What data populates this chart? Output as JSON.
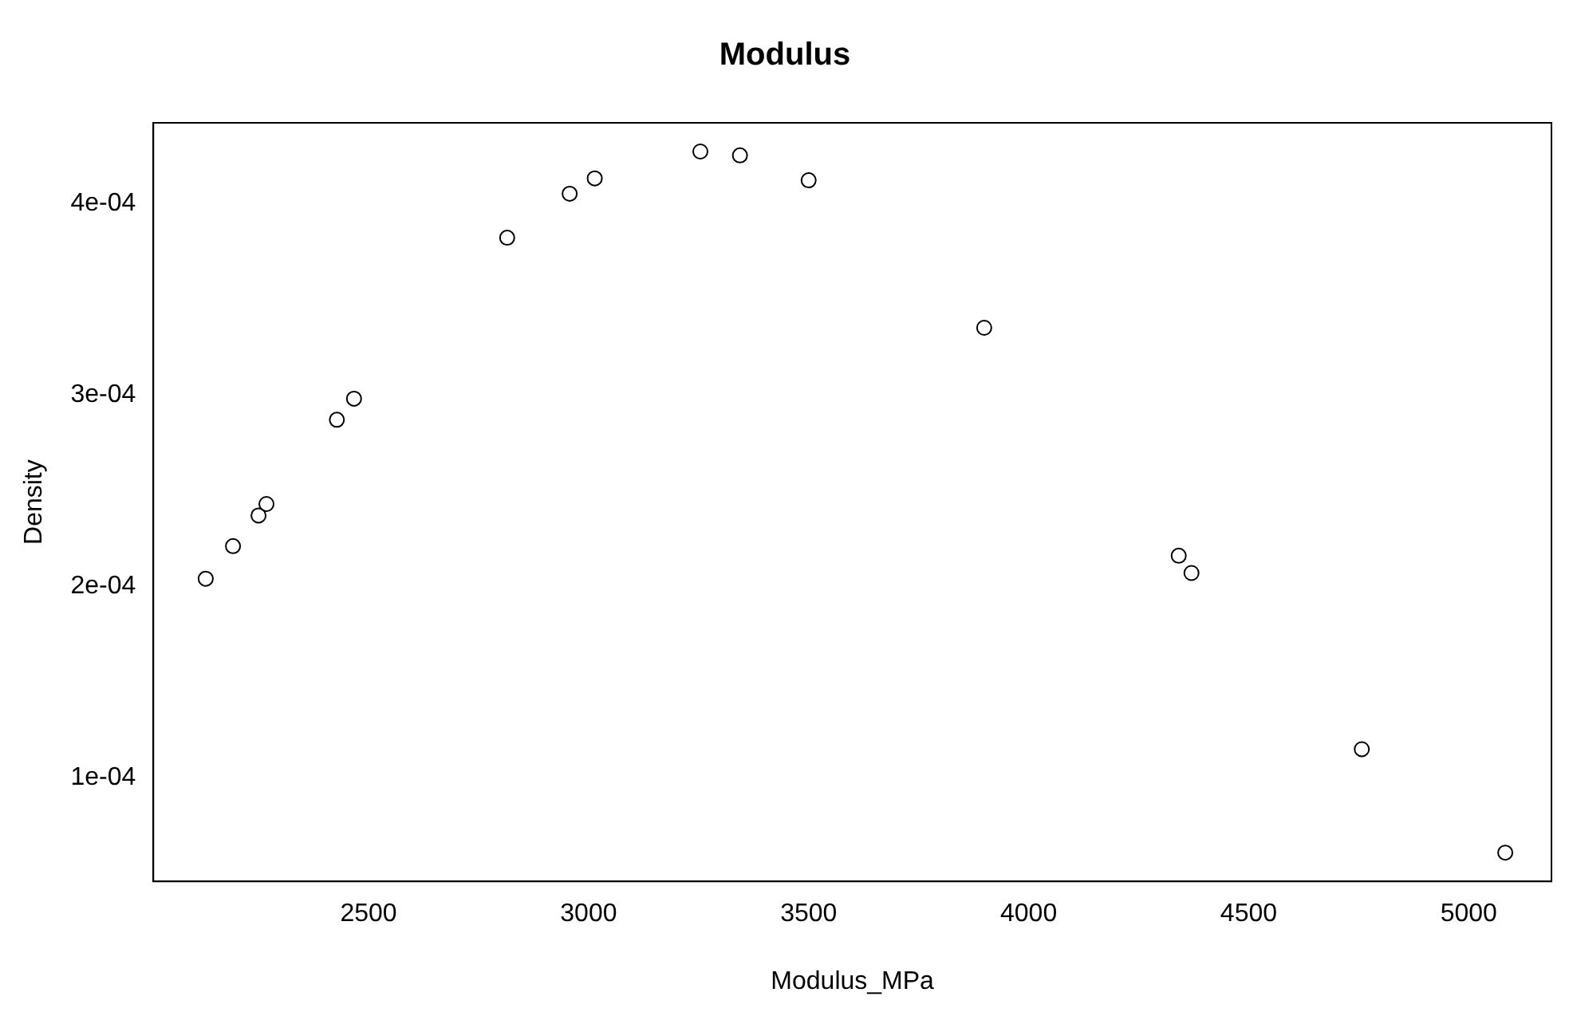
{
  "chart_data": {
    "type": "scatter",
    "title": "Modulus",
    "xlabel": "Modulus_MPa",
    "ylabel": "Density",
    "x": [
      2130,
      2192,
      2250,
      2268,
      2428,
      2467,
      2815,
      2957,
      3014,
      3254,
      3344,
      3500,
      3899,
      4341,
      4370,
      4757,
      5083
    ],
    "series": [
      {
        "color": "#000000",
        "values": [
          0.000204,
          0.000221,
          0.000237,
          0.000243,
          0.000287,
          0.000298,
          0.000382,
          0.000405,
          0.000413,
          0.000427,
          0.000425,
          0.000412,
          0.000335,
          0.000216,
          0.000207,
          0.000115,
          6.1e-05
        ]
      }
    ],
    "xlim": [
      2011,
      5188
    ],
    "ylim": [
      4.6e-05,
      0.000442
    ],
    "xticks": [
      2500,
      3000,
      3500,
      4000,
      4500,
      5000
    ],
    "yticks": [
      {
        "value": 0.0001,
        "label": "1e-04"
      },
      {
        "value": 0.0002,
        "label": "2e-04"
      },
      {
        "value": 0.0003,
        "label": "3e-04"
      },
      {
        "value": 0.0004,
        "label": "4e-04"
      }
    ],
    "grid": false,
    "legend": false,
    "marker": "circle"
  }
}
